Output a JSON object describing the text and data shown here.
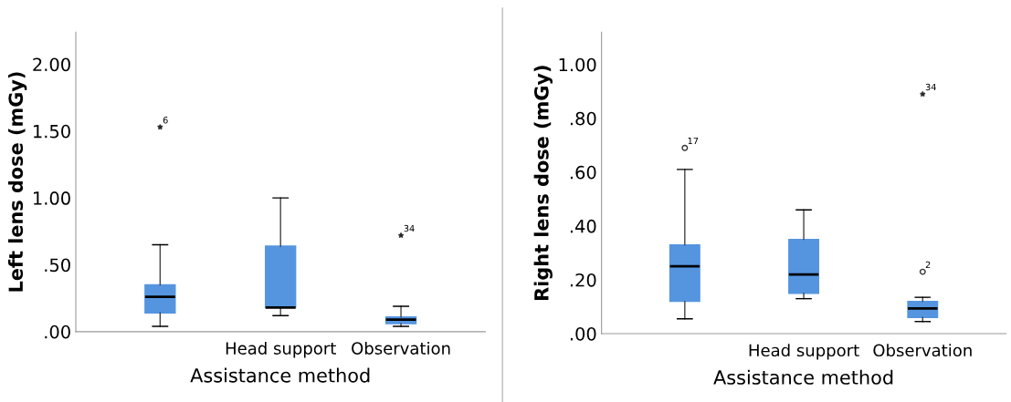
{
  "chart_data": [
    {
      "type": "box",
      "xlabel": "Assistance method",
      "ylabel": "Left lens dose (mGy)",
      "categories": [
        null,
        "Head support",
        "Observation"
      ],
      "color": "#5595e0",
      "boxes": [
        {
          "low": 0.04,
          "q1": 0.14,
          "median": 0.26,
          "q3": 0.35,
          "high": 0.65,
          "outliers": [
            1.53
          ]
        },
        {
          "low": 0.12,
          "q1": 0.18,
          "median": 0.18,
          "q3": 0.64,
          "high": 1.0
        },
        {
          "low": 0.04,
          "q1": 0.06,
          "median": 0.09,
          "q3": 0.11,
          "high": 0.19,
          "outliers": [
            0.72
          ]
        }
      ],
      "annotations": [
        "6",
        "34"
      ],
      "ylim": [
        0,
        2.24
      ],
      "yticks": [
        {
          "value": 0,
          "label": ".00"
        },
        {
          "value": 0.5,
          "label": ".50"
        },
        {
          "value": 1.0,
          "label": "1.00"
        },
        {
          "value": 1.5,
          "label": "1.50"
        },
        {
          "value": 2.0,
          "label": "2.00"
        }
      ],
      "grid": false
    },
    {
      "type": "box",
      "xlabel": "Assistance method",
      "ylabel": "Right lens dose (mGy)",
      "categories": [
        null,
        "Head support",
        "Observation"
      ],
      "color": "#5595e0",
      "boxes": [
        {
          "low": 0.055,
          "q1": 0.12,
          "median": 0.25,
          "q3": 0.33,
          "high": 0.61,
          "outliers": [
            0.69
          ]
        },
        {
          "low": 0.13,
          "q1": 0.15,
          "median": 0.22,
          "q3": 0.35,
          "high": 0.46
        },
        {
          "low": 0.045,
          "q1": 0.06,
          "median": 0.094,
          "q3": 0.12,
          "high": 0.135,
          "outliers": [
            0.23,
            0.89
          ]
        }
      ],
      "annotations": [
        "17",
        "2",
        "34"
      ],
      "ylim": [
        0,
        1.12
      ],
      "yticks": [
        {
          "value": 0,
          "label": ".00"
        },
        {
          "value": 0.2,
          "label": ".20"
        },
        {
          "value": 0.4,
          "label": ".40"
        },
        {
          "value": 0.6,
          "label": ".60"
        },
        {
          "value": 0.8,
          "label": ".80"
        },
        {
          "value": 1.0,
          "label": "1.00"
        }
      ],
      "grid": false
    }
  ]
}
